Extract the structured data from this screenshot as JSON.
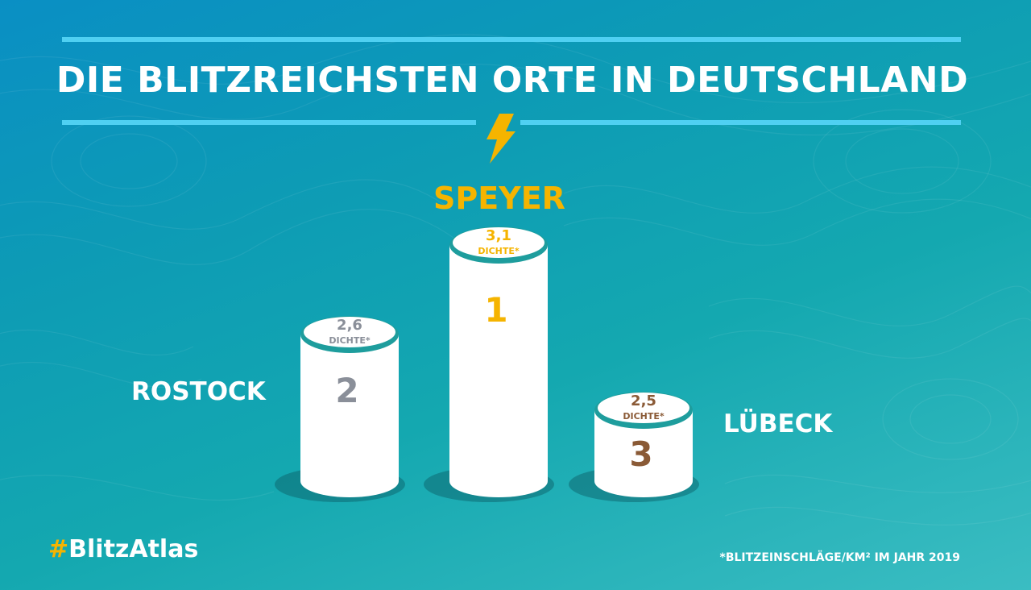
{
  "header": {
    "title": "DIE BLITZREICHSTEN ORTE IN DEUTSCHLAND"
  },
  "chart_data": {
    "type": "bar",
    "title": "DIE BLITZREICHSTEN ORTE IN DEUTSCHLAND",
    "categories": [
      "ROSTOCK",
      "SPEYER",
      "LÜBECK"
    ],
    "values": [
      2.6,
      3.1,
      2.5
    ],
    "value_labels": [
      "2,6",
      "3,1",
      "2,5"
    ],
    "unit_label": "DICHTE*",
    "ranks": [
      "2",
      "1",
      "3"
    ],
    "rank_colors": [
      "#8a8f99",
      "#f5b400",
      "#8a5a36"
    ],
    "highlight_color": "#f5b400",
    "ylim": [
      0,
      3.1
    ]
  },
  "footer": {
    "hashtag_symbol": "#",
    "hashtag_text": "BlitzAtlas",
    "footnote": "*BLITZEINSCHLÄGE/KM² IM JAHR 2019"
  },
  "icons": {
    "bolt": "lightning-bolt-icon"
  }
}
